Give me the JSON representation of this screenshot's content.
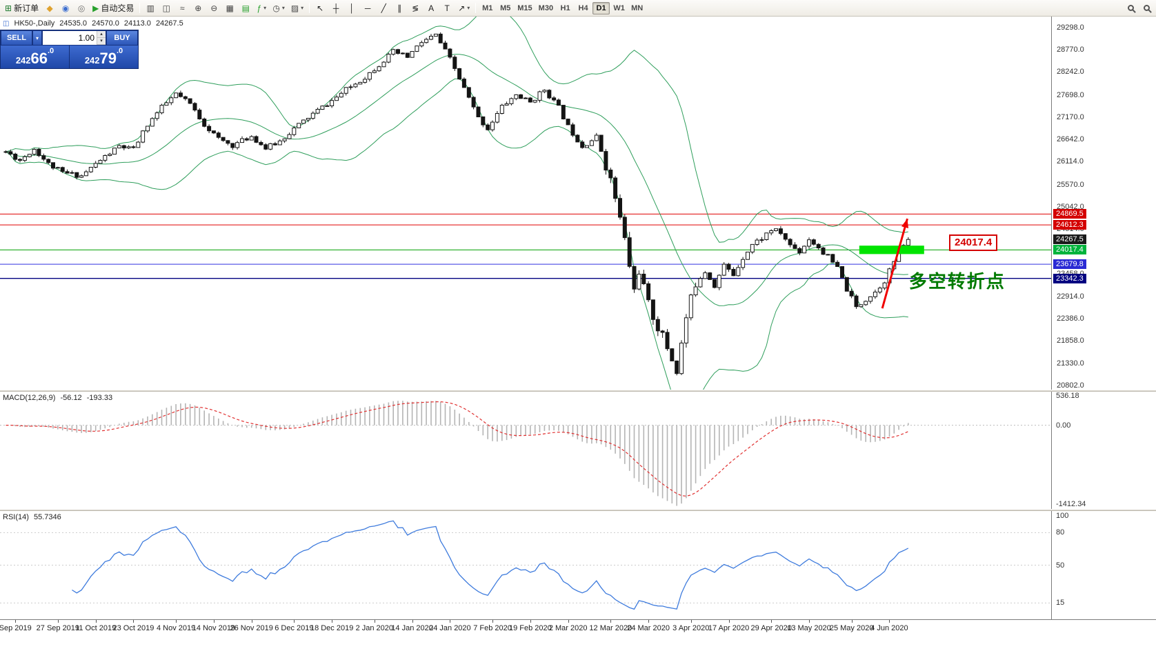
{
  "toolbar": {
    "dropdown_glyph": "▾",
    "groups": [
      {
        "items": [
          {
            "name": "new-order-button",
            "glyph": "⊞",
            "color": "#1F7A2E",
            "label": "新订单"
          },
          {
            "name": "chart-profiles-button",
            "glyph": "◆",
            "color": "#DFA22F"
          },
          {
            "name": "market-watch-button",
            "glyph": "◉",
            "color": "#3C6ED0"
          },
          {
            "name": "data-window-button",
            "glyph": "◎",
            "color": "#707070"
          },
          {
            "name": "autotrading-button",
            "glyph": "▶",
            "color": "#27A02C",
            "label": "自动交易"
          }
        ]
      },
      {
        "items": [
          {
            "name": "bar-chart-button",
            "glyph": "▥",
            "color": "#444444"
          },
          {
            "name": "candlestick-chart-button",
            "glyph": "◫",
            "color": "#444444"
          },
          {
            "name": "line-chart-button",
            "glyph": "≈",
            "color": "#444444"
          },
          {
            "name": "zoom-in-button",
            "glyph": "⊕",
            "color": "#444444"
          },
          {
            "name": "zoom-out-button",
            "glyph": "⊖",
            "color": "#444444"
          },
          {
            "name": "tile-windows-button",
            "glyph": "▦",
            "color": "#444444"
          },
          {
            "name": "auto-arrange-button",
            "glyph": "▤",
            "color": "#27A02C"
          },
          {
            "name": "indicators-button",
            "glyph": "ƒ",
            "color": "#27A02C",
            "dropdown": true
          },
          {
            "name": "periods-button",
            "glyph": "◷",
            "color": "#444444",
            "dropdown": true
          },
          {
            "name": "templates-button",
            "glyph": "▨",
            "color": "#444444",
            "dropdown": true
          }
        ]
      },
      {
        "items": [
          {
            "name": "cursor-tool-button",
            "glyph": "↖",
            "color": "#222222"
          },
          {
            "name": "crosshair-tool-button",
            "glyph": "┼",
            "color": "#222222"
          },
          {
            "name": "vertical-line-tool-button",
            "glyph": "│",
            "color": "#222222"
          },
          {
            "name": "horizontal-line-tool-button",
            "glyph": "─",
            "color": "#222222"
          },
          {
            "name": "trendline-tool-button",
            "glyph": "╱",
            "color": "#222222"
          },
          {
            "name": "channel-tool-button",
            "glyph": "∥",
            "color": "#222222"
          },
          {
            "name": "fibonacci-tool-button",
            "glyph": "≶",
            "color": "#222222"
          },
          {
            "name": "text-tool-button",
            "glyph": "A",
            "color": "#222222"
          },
          {
            "name": "label-tool-button",
            "glyph": "T",
            "color": "#222222"
          },
          {
            "name": "arrows-tool-button",
            "glyph": "↗",
            "color": "#222222",
            "dropdown": true
          }
        ]
      }
    ],
    "timeframes": [
      "M1",
      "M5",
      "M15",
      "M30",
      "H1",
      "H4",
      "D1",
      "W1",
      "MN"
    ],
    "active_timeframe": "D1",
    "right_buttons": [
      {
        "name": "search-symbol-button"
      },
      {
        "name": "quick-search-button"
      }
    ]
  },
  "chart": {
    "title": {
      "symbol": "HK50-,Daily",
      "open": "24535.0",
      "high": "24570.0",
      "low": "24113.0",
      "close": "24267.5"
    },
    "price_axis": {
      "min": 20700,
      "max": 29560,
      "ticks": [
        29298.0,
        28770.0,
        28242.0,
        27698.0,
        27170.0,
        26642.0,
        26114.0,
        25570.0,
        25042.0,
        24514.0,
        23458.0,
        22914.0,
        22386.0,
        21858.0,
        21330.0,
        20802.0
      ]
    },
    "price_tags": [
      {
        "label": "24869.5",
        "price": 24869.5,
        "bg": "#D40000"
      },
      {
        "label": "24612.3",
        "price": 24612.3,
        "bg": "#D40000"
      },
      {
        "label": "24267.5",
        "price": 24267.5,
        "bg": "#1A1A1A"
      },
      {
        "label": "24017.4",
        "price": 24017.4,
        "bg": "#00B43C"
      },
      {
        "label": "23679.8",
        "price": 23679.8,
        "bg": "#2A2AD4"
      },
      {
        "label": "23342.3",
        "price": 23342.3,
        "bg": "#000080"
      }
    ],
    "hlines": [
      {
        "price": 24869.5,
        "color": "#E00000",
        "w": 1
      },
      {
        "price": 24612.3,
        "color": "#E00000",
        "w": 1
      },
      {
        "price": 24017.4,
        "color": "#00A000",
        "w": 1
      },
      {
        "price": 23679.8,
        "color": "#3030E0",
        "w": 1
      },
      {
        "price": 23342.3,
        "color": "#000080",
        "w": 1.4
      }
    ],
    "series": {
      "seed": 11,
      "count": 192,
      "crash_range": [
        127,
        146
      ],
      "vol_base": 130,
      "vol_crash": 320,
      "vol_post": 150,
      "waypoints": [
        [
          0,
          26350
        ],
        [
          3,
          26150
        ],
        [
          6,
          26420
        ],
        [
          9,
          26060
        ],
        [
          12,
          25850
        ],
        [
          16,
          25780
        ],
        [
          20,
          26150
        ],
        [
          24,
          26480
        ],
        [
          27,
          26400
        ],
        [
          30,
          27000
        ],
        [
          33,
          27400
        ],
        [
          36,
          27720
        ],
        [
          39,
          27480
        ],
        [
          42,
          27000
        ],
        [
          45,
          26650
        ],
        [
          48,
          26500
        ],
        [
          52,
          26720
        ],
        [
          55,
          26430
        ],
        [
          58,
          26600
        ],
        [
          61,
          26900
        ],
        [
          65,
          27250
        ],
        [
          69,
          27560
        ],
        [
          72,
          27820
        ],
        [
          76,
          28120
        ],
        [
          79,
          28420
        ],
        [
          82,
          28720
        ],
        [
          85,
          28600
        ],
        [
          88,
          28950
        ],
        [
          91,
          29120
        ],
        [
          94,
          28550
        ],
        [
          97,
          27850
        ],
        [
          100,
          27150
        ],
        [
          102,
          26900
        ],
        [
          105,
          27420
        ],
        [
          108,
          27700
        ],
        [
          111,
          27520
        ],
        [
          114,
          27830
        ],
        [
          117,
          27400
        ],
        [
          119,
          26950
        ],
        [
          122,
          26480
        ],
        [
          125,
          26700
        ],
        [
          127,
          26050
        ],
        [
          129,
          25250
        ],
        [
          131,
          24250
        ],
        [
          133,
          23050
        ],
        [
          134,
          23550
        ],
        [
          136,
          22700
        ],
        [
          138,
          22200
        ],
        [
          140,
          21700
        ],
        [
          142,
          21150
        ],
        [
          144,
          22400
        ],
        [
          146,
          23250
        ],
        [
          148,
          23520
        ],
        [
          150,
          23180
        ],
        [
          152,
          23650
        ],
        [
          154,
          23420
        ],
        [
          156,
          23850
        ],
        [
          158,
          24150
        ],
        [
          160,
          24300
        ],
        [
          162,
          24500
        ],
        [
          164,
          24420
        ],
        [
          166,
          24130
        ],
        [
          168,
          23980
        ],
        [
          170,
          24280
        ],
        [
          172,
          24080
        ],
        [
          174,
          23850
        ],
        [
          176,
          23580
        ],
        [
          178,
          23080
        ],
        [
          180,
          22650
        ],
        [
          182,
          22850
        ],
        [
          184,
          23020
        ],
        [
          186,
          23300
        ],
        [
          188,
          23750
        ],
        [
          190,
          24150
        ],
        [
          191,
          24267.5
        ]
      ]
    },
    "time_axis": [
      {
        "i": 2,
        "label": "Sep 2019"
      },
      {
        "i": 11,
        "label": "27 Sep 2019"
      },
      {
        "i": 19,
        "label": "11 Oct 2019"
      },
      {
        "i": 27,
        "label": "23 Oct 2019"
      },
      {
        "i": 36,
        "label": "4 Nov 2019"
      },
      {
        "i": 44,
        "label": "14 Nov 2019"
      },
      {
        "i": 52,
        "label": "26 Nov 2019"
      },
      {
        "i": 61,
        "label": "6 Dec 2019"
      },
      {
        "i": 69,
        "label": "18 Dec 2019"
      },
      {
        "i": 78,
        "label": "2 Jan 2020"
      },
      {
        "i": 86,
        "label": "14 Jan 2020"
      },
      {
        "i": 94,
        "label": "24 Jan 2020"
      },
      {
        "i": 103,
        "label": "7 Feb 2020"
      },
      {
        "i": 111,
        "label": "19 Feb 2020"
      },
      {
        "i": 119,
        "label": "2 Mar 2020"
      },
      {
        "i": 128,
        "label": "12 Mar 2020"
      },
      {
        "i": 136,
        "label": "24 Mar 2020"
      },
      {
        "i": 145,
        "label": "3 Apr 2020"
      },
      {
        "i": 153,
        "label": "17 Apr 2020"
      },
      {
        "i": 162,
        "label": "29 Apr 2020"
      },
      {
        "i": 170,
        "label": "13 May 2020"
      },
      {
        "i": 179,
        "label": "25 May 2020"
      },
      {
        "i": 187,
        "label": "4 Jun 2020"
      }
    ],
    "annotations": {
      "zone": {
        "i1": 181,
        "i2": 194,
        "p1": 23920,
        "p2": 24120,
        "color": "#00E400",
        "label": "24017.4",
        "label_i": 200,
        "label_price": 24190,
        "label_color": "#D40000"
      },
      "note": {
        "text": "多空转折点",
        "i": 191.5,
        "price": 23600,
        "color": "#007A00"
      },
      "arrow": {
        "i1": 185.5,
        "p1": 22630,
        "i2": 190.8,
        "p2": 24760,
        "color": "#F00000"
      }
    }
  },
  "trade": {
    "sell_label": "SELL",
    "buy_label": "BUY",
    "lot": "1.00",
    "sell": {
      "pre": "242",
      "big": "66",
      "sup": ".0"
    },
    "buy": {
      "pre": "242",
      "big": "79",
      "sup": ".0"
    },
    "icons": {
      "dropdown": "▾",
      "spin_up": "▴",
      "spin_down": "▾"
    }
  },
  "macd": {
    "name": "MACD(12,26,9)",
    "v1": "-56.12",
    "v2": "-193.33",
    "max": 600,
    "min": -1500,
    "axis": [
      {
        "label": "536.18",
        "value": 536.18
      },
      {
        "label": "0.00",
        "value": 0
      },
      {
        "label": "-1412.34",
        "value": -1412.34
      }
    ]
  },
  "rsi": {
    "name": "RSI(14)",
    "value": "55.7346",
    "axis": [
      {
        "label": "100",
        "value": 100
      },
      {
        "label": "80",
        "value": 80
      },
      {
        "label": "50",
        "value": 50
      },
      {
        "label": "15",
        "value": 15
      }
    ],
    "levels": [
      80,
      50,
      15
    ]
  },
  "colors": {
    "candle_up": "#FFFFFF",
    "candle_down": "#141414",
    "wick": "#141414",
    "bollinger": "#2E9E5B",
    "macd_hist": "#B4B4B4",
    "macd_signal": "#E03030",
    "rsi_line": "#3E7BDD",
    "chart_bg": "#FFFFFF"
  }
}
